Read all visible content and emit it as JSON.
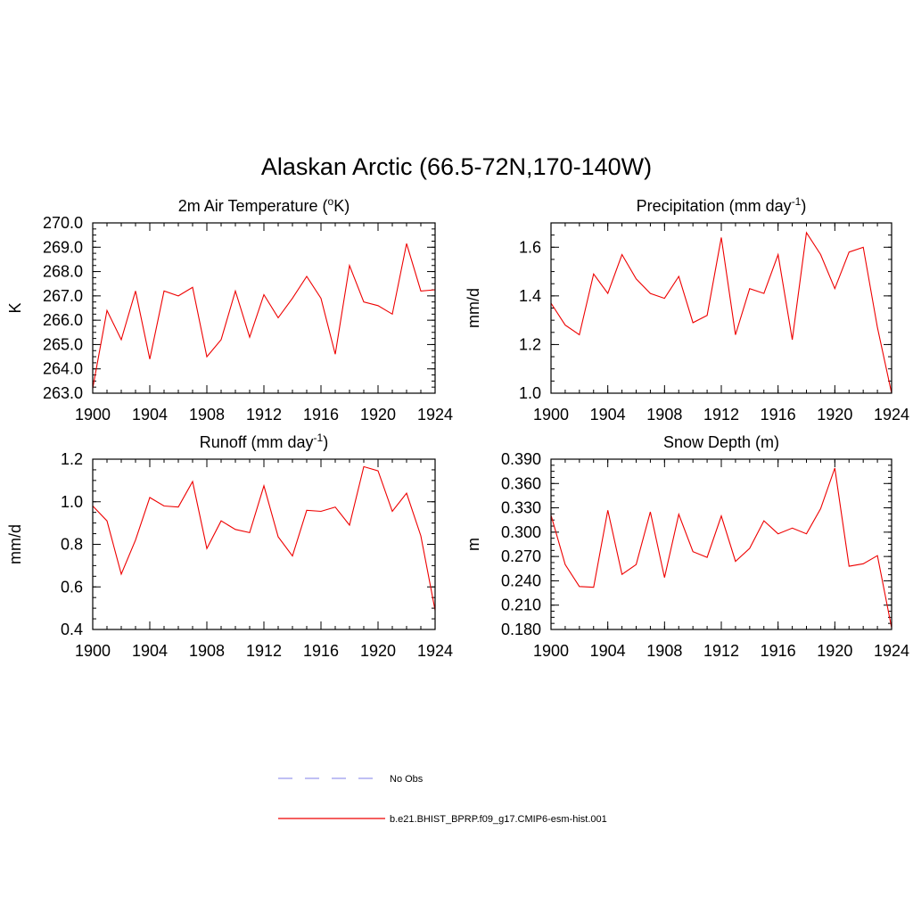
{
  "figure": {
    "title": "Alaskan Arctic (66.5-72N,170-140W)"
  },
  "legend": {
    "items": [
      {
        "label": "No Obs",
        "color": "#9999ee",
        "dashed": true
      },
      {
        "label": "b.e21.BHIST_BPRP.f09_g17.CMIP6-esm-hist.001",
        "color": "#ee0000",
        "dashed": false
      }
    ]
  },
  "colors": {
    "series": "#ee0000",
    "axis": "#000000"
  },
  "chart_data": [
    {
      "type": "line",
      "title": "2m Air Temperature (°K)",
      "title_parts": {
        "pre": "2m Air Temperature (",
        "sup": "o",
        "post": "K)"
      },
      "ylabel": "K",
      "xlim": [
        1900,
        1924
      ],
      "ylim": [
        263.0,
        270.0
      ],
      "xticks": [
        "1900",
        "1904",
        "1908",
        "1912",
        "1916",
        "1920",
        "1924"
      ],
      "yticks": [
        "263.0",
        "264.0",
        "265.0",
        "266.0",
        "267.0",
        "268.0",
        "269.0",
        "270.0"
      ],
      "series": [
        {
          "name": "b.e21.BHIST_BPRP.f09_g17.CMIP6-esm-hist.001",
          "x": [
            1900,
            1901,
            1902,
            1903,
            1904,
            1905,
            1906,
            1907,
            1908,
            1909,
            1910,
            1911,
            1912,
            1913,
            1914,
            1915,
            1916,
            1917,
            1918,
            1919,
            1920,
            1921,
            1922,
            1923,
            1924
          ],
          "values": [
            263.2,
            266.4,
            265.2,
            267.2,
            264.4,
            267.2,
            267.0,
            267.35,
            264.5,
            265.2,
            267.2,
            265.3,
            267.05,
            266.1,
            266.9,
            267.8,
            266.9,
            264.6,
            268.25,
            266.75,
            266.6,
            266.25,
            269.15,
            267.2,
            267.25
          ]
        }
      ]
    },
    {
      "type": "line",
      "title": "Precipitation (mm day-1)",
      "title_parts": {
        "pre": "Precipitation (mm day",
        "sup": "-1",
        "post": ")"
      },
      "ylabel": "mm/d",
      "xlim": [
        1900,
        1924
      ],
      "ylim": [
        1.0,
        1.7
      ],
      "xticks": [
        "1900",
        "1904",
        "1908",
        "1912",
        "1916",
        "1920",
        "1924"
      ],
      "yticks": [
        "1.0",
        "1.2",
        "1.4",
        "1.6"
      ],
      "series": [
        {
          "name": "b.e21.BHIST_BPRP.f09_g17.CMIP6-esm-hist.001",
          "x": [
            1900,
            1901,
            1902,
            1903,
            1904,
            1905,
            1906,
            1907,
            1908,
            1909,
            1910,
            1911,
            1912,
            1913,
            1914,
            1915,
            1916,
            1917,
            1918,
            1919,
            1920,
            1921,
            1922,
            1923,
            1924
          ],
          "values": [
            1.37,
            1.28,
            1.24,
            1.49,
            1.41,
            1.57,
            1.47,
            1.41,
            1.39,
            1.48,
            1.29,
            1.32,
            1.64,
            1.24,
            1.43,
            1.41,
            1.57,
            1.22,
            1.66,
            1.57,
            1.43,
            1.58,
            1.6,
            1.27,
            1.0
          ]
        }
      ]
    },
    {
      "type": "line",
      "title": "Runoff (mm day-1)",
      "title_parts": {
        "pre": "Runoff (mm day",
        "sup": "-1",
        "post": ")"
      },
      "ylabel": "mm/d",
      "xlim": [
        1900,
        1924
      ],
      "ylim": [
        0.4,
        1.2
      ],
      "xticks": [
        "1900",
        "1904",
        "1908",
        "1912",
        "1916",
        "1920",
        "1924"
      ],
      "yticks": [
        "0.4",
        "0.6",
        "0.8",
        "1.0",
        "1.2"
      ],
      "series": [
        {
          "name": "b.e21.BHIST_BPRP.f09_g17.CMIP6-esm-hist.001",
          "x": [
            1900,
            1901,
            1902,
            1903,
            1904,
            1905,
            1906,
            1907,
            1908,
            1909,
            1910,
            1911,
            1912,
            1913,
            1914,
            1915,
            1916,
            1917,
            1918,
            1919,
            1920,
            1921,
            1922,
            1923,
            1924
          ],
          "values": [
            0.98,
            0.91,
            0.66,
            0.82,
            1.02,
            0.98,
            0.975,
            1.095,
            0.78,
            0.91,
            0.87,
            0.855,
            1.075,
            0.835,
            0.745,
            0.96,
            0.955,
            0.975,
            0.89,
            1.165,
            1.145,
            0.955,
            1.04,
            0.84,
            0.49
          ]
        }
      ]
    },
    {
      "type": "line",
      "title": "Snow Depth (m)",
      "title_parts": {
        "pre": "Snow Depth (m)",
        "sup": "",
        "post": ""
      },
      "ylabel": "m",
      "xlim": [
        1900,
        1924
      ],
      "ylim": [
        0.18,
        0.39
      ],
      "xticks": [
        "1900",
        "1904",
        "1908",
        "1912",
        "1916",
        "1920",
        "1924"
      ],
      "yticks": [
        "0.180",
        "0.210",
        "0.240",
        "0.270",
        "0.300",
        "0.330",
        "0.360",
        "0.390"
      ],
      "series": [
        {
          "name": "b.e21.BHIST_BPRP.f09_g17.CMIP6-esm-hist.001",
          "x": [
            1900,
            1901,
            1902,
            1903,
            1904,
            1905,
            1906,
            1907,
            1908,
            1909,
            1910,
            1911,
            1912,
            1913,
            1914,
            1915,
            1916,
            1917,
            1918,
            1919,
            1920,
            1921,
            1922,
            1923,
            1924
          ],
          "values": [
            0.321,
            0.26,
            0.233,
            0.232,
            0.327,
            0.248,
            0.26,
            0.325,
            0.244,
            0.322,
            0.276,
            0.269,
            0.32,
            0.264,
            0.28,
            0.314,
            0.298,
            0.305,
            0.298,
            0.329,
            0.379,
            0.258,
            0.261,
            0.271,
            0.182
          ]
        }
      ]
    }
  ]
}
